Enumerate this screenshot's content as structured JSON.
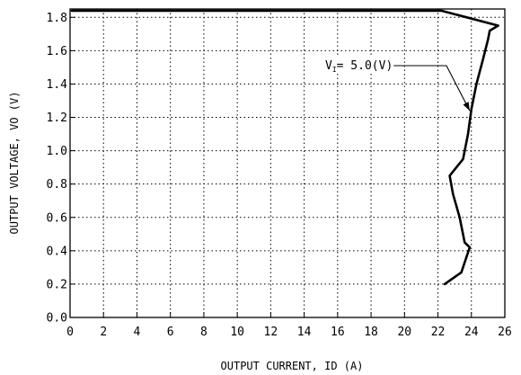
{
  "chart_data": {
    "type": "line",
    "title": "",
    "xlabel": "OUTPUT  CURRENT,  ID (A)",
    "ylabel": "OUTPUT VOLTAGE,  VO (V)",
    "xlim": [
      0,
      26
    ],
    "ylim": [
      0,
      1.85
    ],
    "x_ticks": [
      0,
      2,
      4,
      6,
      8,
      10,
      12,
      14,
      16,
      18,
      20,
      22,
      24,
      26
    ],
    "y_ticks": [
      0,
      0.2,
      0.4,
      0.6,
      0.8,
      1.0,
      1.2,
      1.4,
      1.6,
      1.8
    ],
    "x_tick_labels": [
      "0",
      "2",
      "4",
      "6",
      "8",
      "10",
      "12",
      "14",
      "16",
      "18",
      "20",
      "22",
      "24",
      "26"
    ],
    "y_tick_labels": [
      "0.0",
      "0.2",
      "0.4",
      "0.6",
      "0.8",
      "1.0",
      "1.2",
      "1.4",
      "1.6",
      "1.8"
    ],
    "grid": true,
    "grid_style": "dotted",
    "series": [
      {
        "name": "VI= 5.0(V)",
        "color": "#000000",
        "x": [
          22.4,
          23.4,
          23.9,
          23.6,
          23.3,
          22.9,
          22.7,
          23.5,
          23.8,
          24.0,
          24.3,
          24.7,
          25.0,
          25.1,
          25.6,
          22.2,
          0.1
        ],
        "y": [
          0.2,
          0.27,
          0.42,
          0.45,
          0.6,
          0.74,
          0.85,
          0.95,
          1.1,
          1.25,
          1.4,
          1.55,
          1.67,
          1.72,
          1.75,
          1.84,
          1.84
        ]
      }
    ],
    "annotations": [
      {
        "label_main": "V",
        "label_sub": "I",
        "label_rest": "= 5.0(V)",
        "target_x": 23.9,
        "target_y": 1.24
      }
    ]
  }
}
